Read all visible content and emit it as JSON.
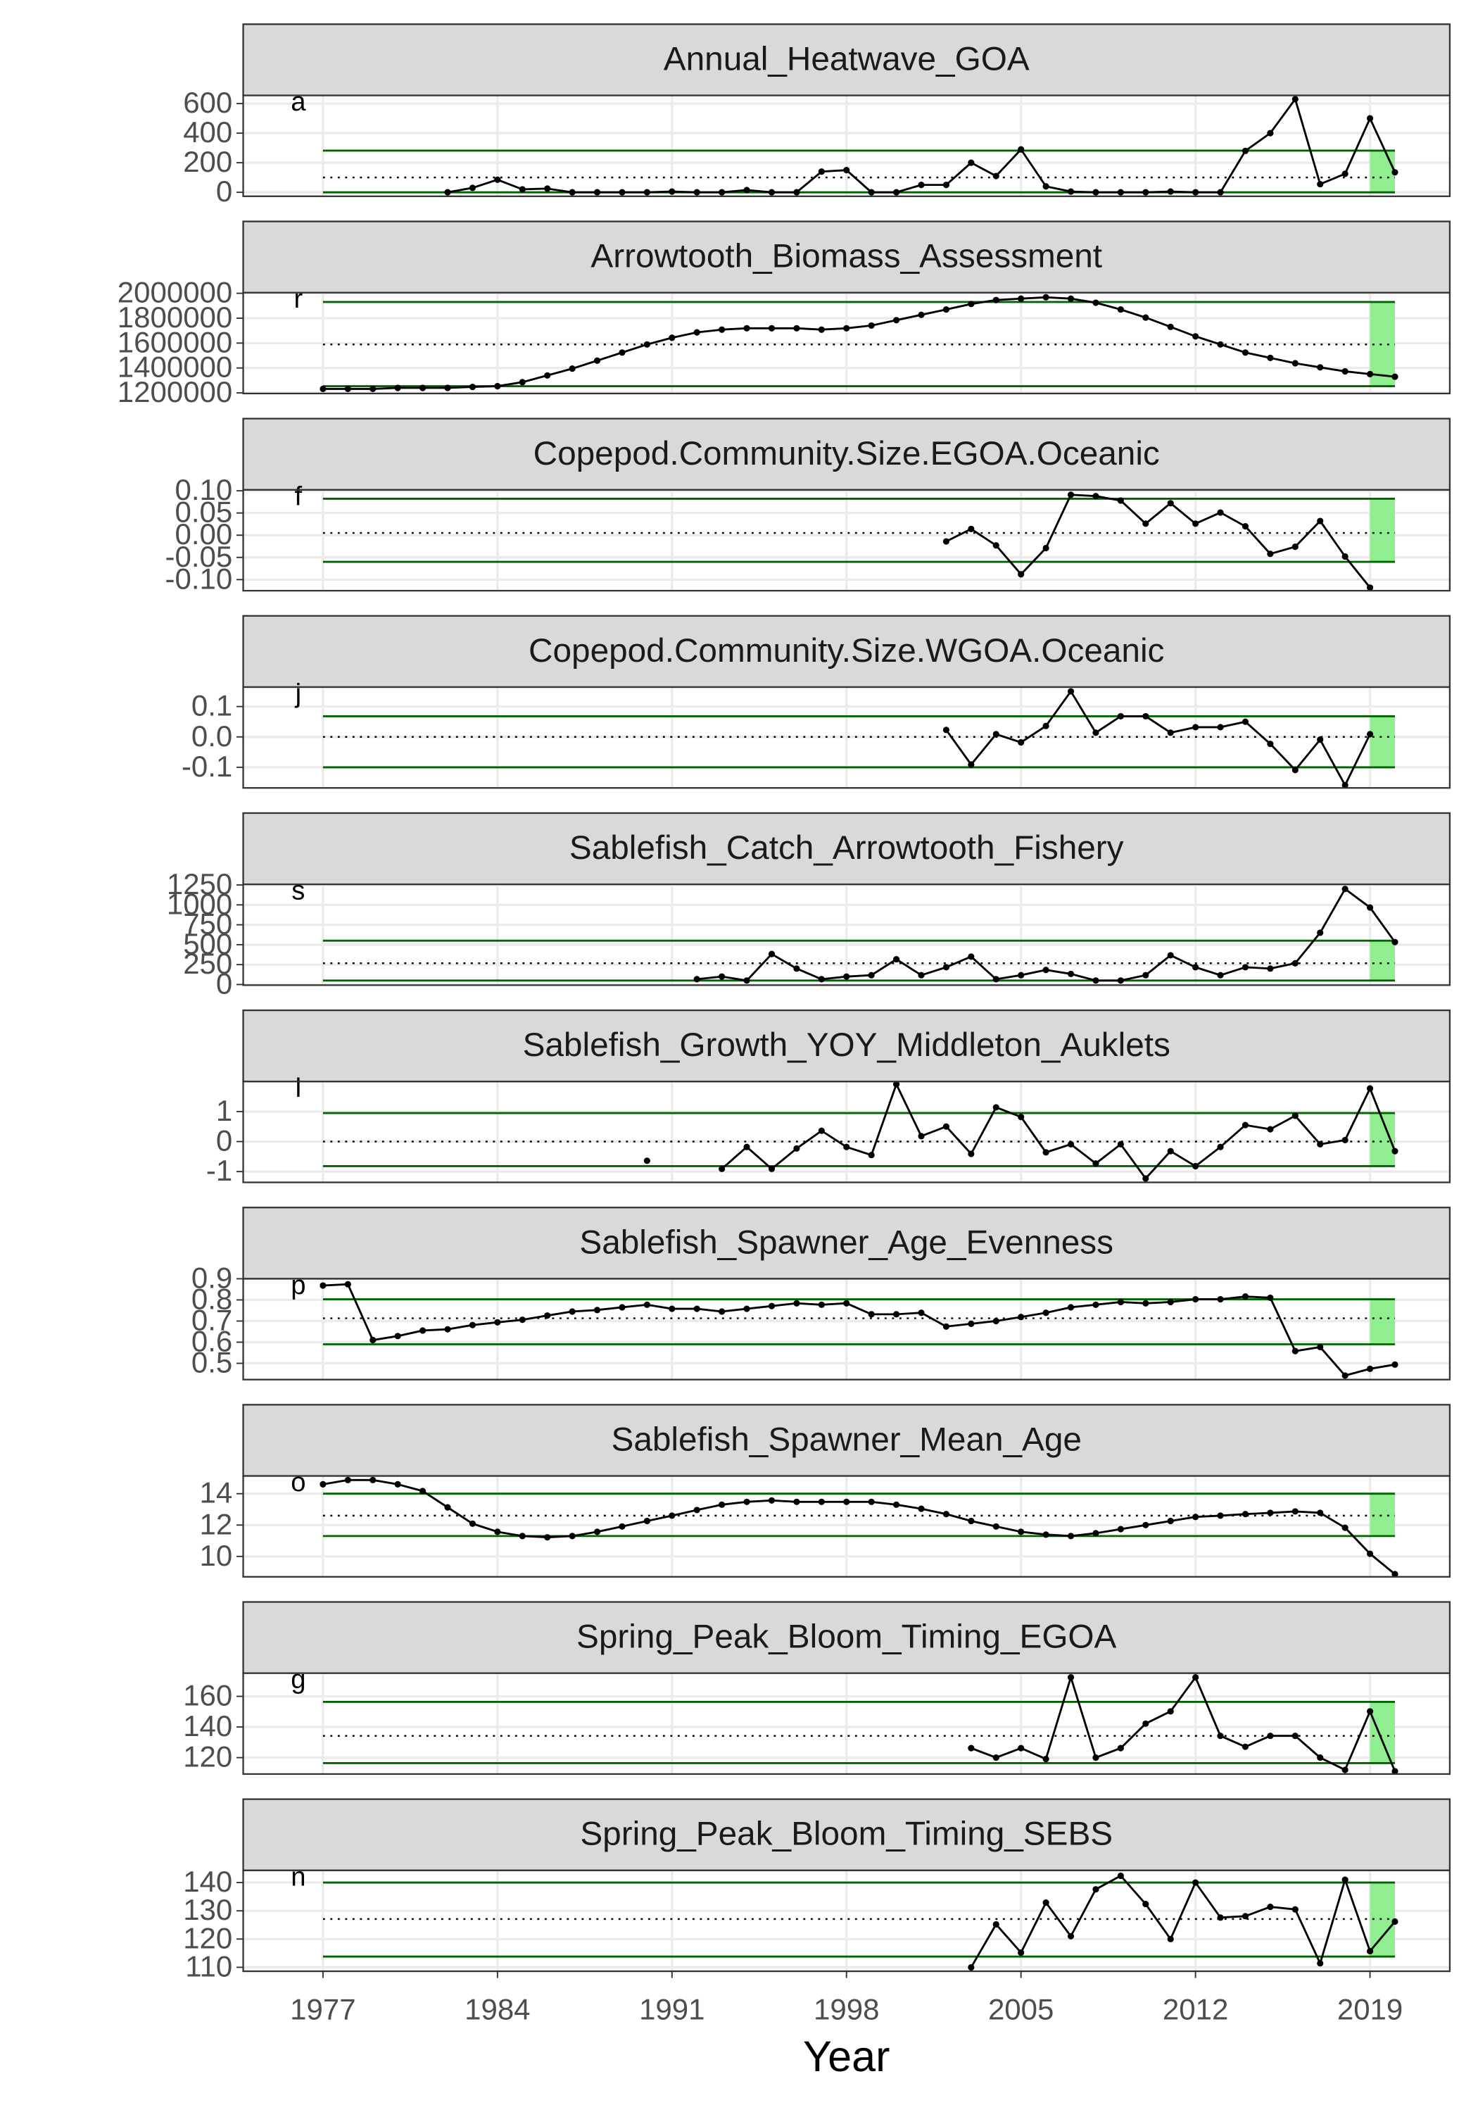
{
  "chart_data": [
    {
      "type": "line",
      "title": "Annual_Heatwave_GOA",
      "annotation": "a",
      "x": [
        1982,
        1983,
        1984,
        1985,
        1986,
        1987,
        1988,
        1989,
        1990,
        1991,
        1992,
        1993,
        1994,
        1995,
        1996,
        1997,
        1998,
        1999,
        2000,
        2001,
        2002,
        2003,
        2004,
        2005,
        2006,
        2007,
        2008,
        2009,
        2010,
        2011,
        2012,
        2013,
        2014,
        2015,
        2016,
        2017,
        2018,
        2019,
        2020
      ],
      "values": [
        0,
        30,
        85,
        20,
        25,
        0,
        0,
        0,
        0,
        5,
        0,
        0,
        15,
        0,
        0,
        140,
        150,
        0,
        0,
        50,
        50,
        200,
        110,
        290,
        40,
        5,
        0,
        0,
        0,
        5,
        0,
        0,
        280,
        400,
        630,
        55,
        125,
        500,
        135
      ],
      "xlim": [
        1973.8,
        2022.2
      ],
      "ylim": [
        -27,
        655
      ],
      "yticks": [
        0,
        200,
        400,
        600
      ],
      "mean": 100,
      "upper": 282,
      "lower": 0,
      "highlight": [
        2019,
        2020
      ],
      "color": "#000000",
      "band_color": "#90ee90",
      "limit_color": "#006400"
    },
    {
      "type": "line",
      "title": "Arrowtooth_Biomass_Assessment",
      "annotation": "r",
      "x": [
        1977,
        1978,
        1979,
        1980,
        1981,
        1982,
        1983,
        1984,
        1985,
        1986,
        1987,
        1988,
        1989,
        1990,
        1991,
        1992,
        1993,
        1994,
        1995,
        1996,
        1997,
        1998,
        1999,
        2000,
        2001,
        2002,
        2003,
        2004,
        2005,
        2006,
        2007,
        2008,
        2009,
        2010,
        2011,
        2012,
        2013,
        2014,
        2015,
        2016,
        2017,
        2018,
        2019,
        2020
      ],
      "values": [
        1232000,
        1232000,
        1232000,
        1240000,
        1240000,
        1240000,
        1248000,
        1254000,
        1286000,
        1340000,
        1395000,
        1459000,
        1524000,
        1589000,
        1643000,
        1686000,
        1708000,
        1719000,
        1719000,
        1719000,
        1708000,
        1719000,
        1741000,
        1784000,
        1827000,
        1870000,
        1914000,
        1946000,
        1957000,
        1968000,
        1957000,
        1924000,
        1870000,
        1805000,
        1730000,
        1654000,
        1589000,
        1524000,
        1481000,
        1438000,
        1405000,
        1373000,
        1351000,
        1330000
      ],
      "xlim": [
        1973.8,
        2022.2
      ],
      "ylim": [
        1195000,
        2005000
      ],
      "yticks": [
        1200000,
        1400000,
        1600000,
        1800000,
        2000000
      ],
      "mean": 1589000,
      "upper": 1930000,
      "lower": 1254000,
      "highlight": [
        2019,
        2020
      ],
      "color": "#000000",
      "band_color": "#90ee90",
      "limit_color": "#006400"
    },
    {
      "type": "line",
      "title": "Copepod.Community.Size.EGOA.Oceanic",
      "annotation": "f",
      "x": [
        2002,
        2003,
        2004,
        2005,
        2006,
        2007,
        2008,
        2009,
        2010,
        2011,
        2012,
        2013,
        2014,
        2015,
        2016,
        2017,
        2018,
        2019
      ],
      "values": [
        -0.014,
        0.014,
        -0.023,
        -0.088,
        -0.029,
        0.091,
        0.088,
        0.078,
        0.026,
        0.072,
        0.026,
        0.051,
        0.02,
        -0.042,
        -0.026,
        0.032,
        -0.048,
        -0.118
      ],
      "xlim": [
        1973.8,
        2022.2
      ],
      "ylim": [
        -0.125,
        0.102
      ],
      "yticks": [
        {
          "value": -0.1,
          "label": "-0.10"
        },
        {
          "value": -0.05,
          "label": "-0.05"
        },
        {
          "value": 0,
          "label": "0.00"
        },
        {
          "value": 0.05,
          "label": "0.05"
        },
        {
          "value": 0.1,
          "label": "0.10"
        }
      ],
      "mean": 0.005,
      "upper": 0.082,
      "lower": -0.06,
      "highlight": [
        2019,
        2020
      ],
      "color": "#000000",
      "band_color": "#90ee90",
      "limit_color": "#006400"
    },
    {
      "type": "line",
      "title": "Copepod.Community.Size.WGOA.Oceanic",
      "annotation": "j",
      "x": [
        2002,
        2003,
        2004,
        2005,
        2006,
        2007,
        2008,
        2009,
        2010,
        2011,
        2012,
        2013,
        2014,
        2015,
        2016,
        2017,
        2018,
        2019
      ],
      "values": [
        0.023,
        -0.091,
        0.009,
        -0.018,
        0.036,
        0.15,
        0.014,
        0.068,
        0.068,
        0.014,
        0.032,
        0.032,
        0.05,
        -0.023,
        -0.109,
        -0.009,
        -0.159,
        0.009
      ],
      "xlim": [
        1973.8,
        2022.2
      ],
      "ylim": [
        -0.168,
        0.164
      ],
      "yticks": [
        -0.1,
        {
          "value": 0,
          "label": "0.0"
        },
        0.1
      ],
      "mean": 0,
      "upper": 0.068,
      "lower": -0.1,
      "highlight": [
        2019,
        2020
      ],
      "color": "#000000",
      "band_color": "#90ee90",
      "limit_color": "#006400"
    },
    {
      "type": "line",
      "title": "Sablefish_Catch_Arrowtooth_Fishery",
      "annotation": "s",
      "x": [
        1992,
        1993,
        1994,
        1995,
        1996,
        1997,
        1998,
        1999,
        2000,
        2001,
        2002,
        2003,
        2004,
        2005,
        2006,
        2007,
        2008,
        2009,
        2010,
        2011,
        2012,
        2013,
        2014,
        2015,
        2016,
        2017,
        2018,
        2019,
        2020
      ],
      "values": [
        67,
        100,
        50,
        383,
        200,
        67,
        100,
        117,
        317,
        117,
        217,
        350,
        67,
        117,
        183,
        133,
        50,
        50,
        117,
        367,
        217,
        117,
        217,
        200,
        267,
        650,
        1200,
        967,
        533
      ],
      "xlim": [
        1973.8,
        2022.2
      ],
      "ylim": [
        -8,
        1258
      ],
      "yticks": [
        0,
        250,
        500,
        750,
        1000,
        1250
      ],
      "mean": 267,
      "upper": 550,
      "lower": 50,
      "highlight": [
        2019,
        2020
      ],
      "color": "#000000",
      "band_color": "#90ee90",
      "limit_color": "#006400"
    },
    {
      "type": "line",
      "title": "Sablefish_Growth_YOY_Middleton_Auklets",
      "annotation": "l",
      "x": [
        1990,
        1991,
        1992,
        1993,
        1994,
        1995,
        1996,
        1997,
        1998,
        1999,
        2000,
        2001,
        2002,
        2003,
        2004,
        2005,
        2006,
        2007,
        2008,
        2009,
        2010,
        2011,
        2012,
        2013,
        2014,
        2015,
        2016,
        2017,
        2018,
        2019,
        2020
      ],
      "values": [
        -0.64,
        null,
        null,
        -0.91,
        -0.18,
        -0.91,
        -0.23,
        0.36,
        -0.18,
        -0.45,
        1.91,
        0.18,
        0.5,
        -0.41,
        1.14,
        0.82,
        -0.36,
        -0.09,
        -0.73,
        -0.09,
        -1.23,
        -0.32,
        -0.82,
        -0.18,
        0.55,
        0.41,
        0.86,
        -0.09,
        0.05,
        1.77,
        -0.32
      ],
      "xlim": [
        1973.8,
        2022.2
      ],
      "ylim": [
        -1.36,
        2.0
      ],
      "yticks": [
        -1,
        0,
        1
      ],
      "mean": 0,
      "upper": 0.95,
      "lower": -0.82,
      "highlight": [
        2019,
        2020
      ],
      "color": "#000000",
      "band_color": "#90ee90",
      "limit_color": "#006400"
    },
    {
      "type": "line",
      "title": "Sablefish_Spawner_Age_Evenness",
      "annotation": "p",
      "x": [
        1977,
        1978,
        1979,
        1980,
        1981,
        1982,
        1983,
        1984,
        1985,
        1986,
        1987,
        1988,
        1989,
        1990,
        1991,
        1992,
        1993,
        1994,
        1995,
        1996,
        1997,
        1998,
        1999,
        2000,
        2001,
        2002,
        2003,
        2004,
        2005,
        2006,
        2007,
        2008,
        2009,
        2010,
        2011,
        2012,
        2013,
        2014,
        2015,
        2016,
        2017,
        2018,
        2019,
        2020
      ],
      "values": [
        0.868,
        0.874,
        0.61,
        0.629,
        0.655,
        0.661,
        0.681,
        0.694,
        0.706,
        0.726,
        0.745,
        0.752,
        0.765,
        0.777,
        0.758,
        0.758,
        0.745,
        0.758,
        0.771,
        0.784,
        0.777,
        0.784,
        0.732,
        0.732,
        0.739,
        0.674,
        0.687,
        0.7,
        0.719,
        0.739,
        0.765,
        0.777,
        0.79,
        0.784,
        0.79,
        0.803,
        0.803,
        0.816,
        0.81,
        0.558,
        0.577,
        0.442,
        0.474,
        0.494
      ],
      "xlim": [
        1973.8,
        2022.2
      ],
      "ylim": [
        0.423,
        0.9
      ],
      "yticks": [
        0.5,
        0.6,
        0.7,
        0.8,
        0.9
      ],
      "mean": 0.713,
      "upper": 0.803,
      "lower": 0.59,
      "highlight": [
        2019,
        2020
      ],
      "color": "#000000",
      "band_color": "#90ee90",
      "limit_color": "#006400"
    },
    {
      "type": "line",
      "title": "Sablefish_Spawner_Mean_Age",
      "annotation": "o",
      "x": [
        1977,
        1978,
        1979,
        1980,
        1981,
        1982,
        1983,
        1984,
        1985,
        1986,
        1987,
        1988,
        1989,
        1990,
        1991,
        1992,
        1993,
        1994,
        1995,
        1996,
        1997,
        1998,
        1999,
        2000,
        2001,
        2002,
        2003,
        2004,
        2005,
        2006,
        2007,
        2008,
        2009,
        2010,
        2011,
        2012,
        2013,
        2014,
        2015,
        2016,
        2017,
        2018,
        2019,
        2020
      ],
      "values": [
        14.6,
        14.87,
        14.87,
        14.6,
        14.17,
        13.13,
        12.09,
        11.57,
        11.3,
        11.22,
        11.3,
        11.57,
        11.91,
        12.26,
        12.6,
        12.96,
        13.3,
        13.48,
        13.57,
        13.48,
        13.48,
        13.48,
        13.48,
        13.3,
        13.04,
        12.7,
        12.26,
        11.91,
        11.57,
        11.39,
        11.3,
        11.48,
        11.74,
        12,
        12.26,
        12.52,
        12.6,
        12.7,
        12.78,
        12.87,
        12.78,
        11.83,
        10.17,
        8.87
      ],
      "xlim": [
        1973.8,
        2022.2
      ],
      "ylim": [
        8.7,
        15.13
      ],
      "yticks": [
        10,
        12,
        14
      ],
      "mean": 12.6,
      "upper": 14.0,
      "lower": 11.3,
      "highlight": [
        2019,
        2020
      ],
      "color": "#000000",
      "band_color": "#90ee90",
      "limit_color": "#006400"
    },
    {
      "type": "line",
      "title": "Spring_Peak_Bloom_Timing_EGOA",
      "annotation": "g",
      "x": [
        2003,
        2004,
        2005,
        2006,
        2007,
        2008,
        2009,
        2010,
        2011,
        2012,
        2013,
        2014,
        2015,
        2016,
        2017,
        2018,
        2019,
        2020
      ],
      "values": [
        126.2,
        120,
        126.2,
        119.1,
        172.4,
        120,
        126.2,
        142.2,
        150.2,
        172.4,
        134.2,
        127.1,
        134.2,
        134.2,
        120,
        112,
        150.2,
        111.1
      ],
      "xlim": [
        1973.8,
        2022.2
      ],
      "ylim": [
        109.3,
        175.1
      ],
      "yticks": [
        120,
        140,
        160
      ],
      "mean": 134.2,
      "upper": 156.4,
      "lower": 116.4,
      "highlight": [
        2019,
        2020
      ],
      "color": "#000000",
      "band_color": "#90ee90",
      "limit_color": "#006400"
    },
    {
      "type": "line",
      "title": "Spring_Peak_Bloom_Timing_SEBS",
      "annotation": "n",
      "x": [
        2003,
        2004,
        2005,
        2006,
        2007,
        2008,
        2009,
        2010,
        2011,
        2012,
        2013,
        2014,
        2015,
        2016,
        2017,
        2018,
        2019,
        2020
      ],
      "values": [
        110,
        125.2,
        115.2,
        132.9,
        121,
        137.6,
        142.4,
        132.4,
        120,
        140,
        127.6,
        128.1,
        131.4,
        130.5,
        111.4,
        141,
        115.7,
        126.2
      ],
      "xlim": [
        1973.8,
        2022.2
      ],
      "ylim": [
        108.6,
        144.3
      ],
      "yticks": [
        110,
        120,
        130,
        140
      ],
      "xticks": [
        1977,
        1984,
        1991,
        1998,
        2005,
        2012,
        2019
      ],
      "xlabel": "Year",
      "mean": 127.1,
      "upper": 140,
      "lower": 113.8,
      "highlight": [
        2019,
        2020
      ],
      "color": "#000000",
      "band_color": "#90ee90",
      "limit_color": "#006400"
    }
  ]
}
